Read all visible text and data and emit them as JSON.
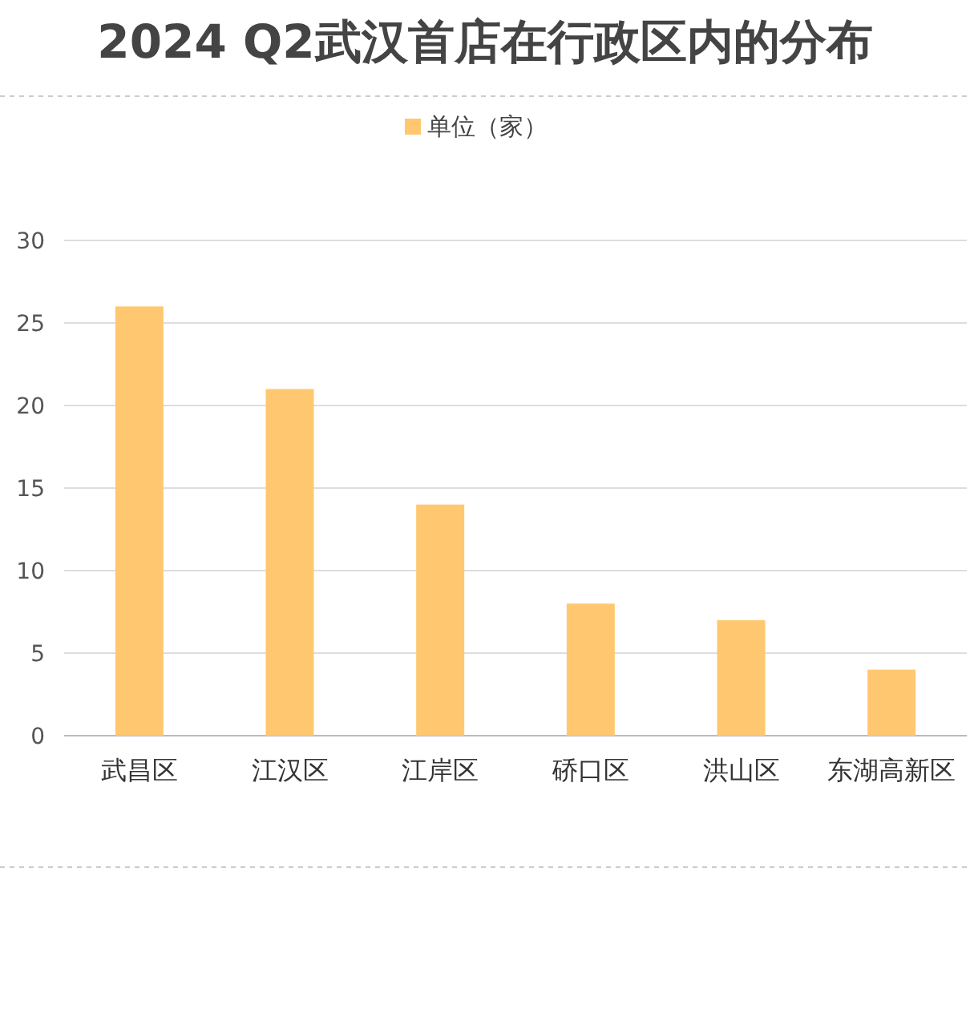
{
  "chart_data": {
    "type": "bar",
    "title": "2024 Q2武汉首店在行政区内的分布",
    "categories": [
      "武昌区",
      "江汉区",
      "江岸区",
      "硚口区",
      "洪山区",
      "东湖高新区"
    ],
    "series": [
      {
        "name": "单位（家）",
        "color": "#ffc870",
        "values": [
          26,
          21,
          14,
          8,
          7,
          4
        ]
      }
    ],
    "ylim": [
      0,
      30
    ],
    "yticks": [
      0,
      5,
      10,
      15,
      20,
      25,
      30
    ],
    "grid": "y",
    "legend": "top"
  }
}
